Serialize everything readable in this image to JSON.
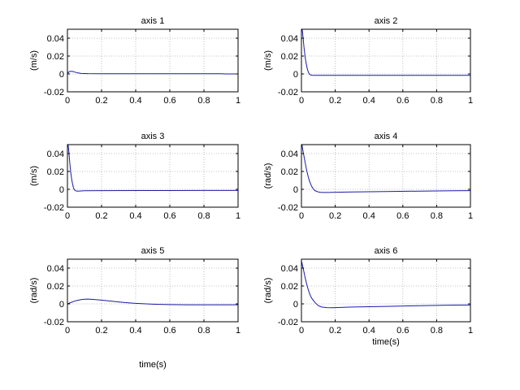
{
  "figure": {
    "background": "#ffffff",
    "line_color": "#1a1aa6",
    "grid_color": "#b0b0b0",
    "axis_color": "#000000"
  },
  "chart_data": [
    {
      "type": "line",
      "title": "axis 1",
      "xlabel": "",
      "ylabel": "(m/s)",
      "xlim": [
        0,
        1
      ],
      "ylim": [
        -0.02,
        0.05
      ],
      "xticks": [
        0,
        0.2,
        0.4,
        0.6,
        0.8,
        1
      ],
      "xtick_labels": [
        "0",
        "0.2",
        "0.4",
        "0.6",
        "0.8",
        "1"
      ],
      "yticks": [
        -0.02,
        0,
        0.02,
        0.04
      ],
      "ytick_labels": [
        "-0.02",
        "0",
        "0.02",
        "0.04"
      ],
      "grid": true,
      "series": [
        {
          "x": [
            0,
            0.01,
            0.02,
            0.03,
            0.04,
            0.06,
            0.08,
            0.12,
            0.2,
            0.4,
            0.6,
            0.8,
            0.9,
            0.93,
            1.0
          ],
          "y": [
            0.0005,
            0.0025,
            0.003,
            0.0028,
            0.0022,
            0.0012,
            0.0006,
            0.0003,
            0.0002,
            0.0002,
            0.0002,
            0.0002,
            0.0002,
            0.0,
            0.0
          ]
        }
      ]
    },
    {
      "type": "line",
      "title": "axis 2",
      "xlabel": "",
      "ylabel": "(m/s)",
      "xlim": [
        0,
        1
      ],
      "ylim": [
        -0.02,
        0.05
      ],
      "xticks": [
        0,
        0.2,
        0.4,
        0.6,
        0.8,
        1
      ],
      "xtick_labels": [
        "0",
        "0.2",
        "0.4",
        "0.6",
        "0.8",
        "1"
      ],
      "yticks": [
        -0.02,
        0,
        0.02,
        0.04
      ],
      "ytick_labels": [
        "-0.02",
        "0",
        "0.02",
        "0.04"
      ],
      "grid": true,
      "series": [
        {
          "x": [
            0.003,
            0.006,
            0.01,
            0.015,
            0.02,
            0.025,
            0.03,
            0.035,
            0.04,
            0.045,
            0.05,
            0.06,
            0.07,
            0.1,
            0.2,
            0.4,
            0.6,
            0.8,
            1.0
          ],
          "y": [
            0.05,
            0.048,
            0.04,
            0.03,
            0.022,
            0.015,
            0.01,
            0.0055,
            0.0025,
            0.0005,
            -0.0008,
            -0.0015,
            -0.0016,
            -0.0016,
            -0.0016,
            -0.0016,
            -0.0016,
            -0.0016,
            -0.0016
          ]
        }
      ]
    },
    {
      "type": "line",
      "title": "axis 3",
      "xlabel": "",
      "ylabel": "(m/s)",
      "xlim": [
        0,
        1
      ],
      "ylim": [
        -0.02,
        0.05
      ],
      "xticks": [
        0,
        0.2,
        0.4,
        0.6,
        0.8,
        1
      ],
      "xtick_labels": [
        "0",
        "0.2",
        "0.4",
        "0.6",
        "0.8",
        "1"
      ],
      "yticks": [
        -0.02,
        0,
        0.02,
        0.04
      ],
      "ytick_labels": [
        "-0.02",
        "0",
        "0.02",
        "0.04"
      ],
      "grid": true,
      "series": [
        {
          "x": [
            0.003,
            0.006,
            0.01,
            0.015,
            0.02,
            0.025,
            0.03,
            0.035,
            0.04,
            0.05,
            0.06,
            0.08,
            0.1,
            0.2,
            0.4,
            0.6,
            0.8,
            1.0
          ],
          "y": [
            0.05,
            0.047,
            0.038,
            0.027,
            0.018,
            0.011,
            0.006,
            0.002,
            -0.0005,
            -0.0018,
            -0.002,
            -0.0018,
            -0.0016,
            -0.0015,
            -0.0014,
            -0.0014,
            -0.0013,
            -0.0012
          ]
        }
      ]
    },
    {
      "type": "line",
      "title": "axis 4",
      "xlabel": "",
      "ylabel": "(rad/s)",
      "xlim": [
        0,
        1
      ],
      "ylim": [
        -0.02,
        0.05
      ],
      "xticks": [
        0,
        0.2,
        0.4,
        0.6,
        0.8,
        1
      ],
      "xtick_labels": [
        "0",
        "0.2",
        "0.4",
        "0.6",
        "0.8",
        "1"
      ],
      "yticks": [
        -0.02,
        0,
        0.02,
        0.04
      ],
      "ytick_labels": [
        "-0.02",
        "0",
        "0.02",
        "0.04"
      ],
      "grid": true,
      "series": [
        {
          "x": [
            0.003,
            0.01,
            0.02,
            0.03,
            0.04,
            0.05,
            0.06,
            0.07,
            0.08,
            0.1,
            0.12,
            0.15,
            0.2,
            0.3,
            0.5,
            0.7,
            0.9,
            1.0
          ],
          "y": [
            0.05,
            0.042,
            0.032,
            0.022,
            0.014,
            0.008,
            0.0035,
            0.0005,
            -0.0015,
            -0.003,
            -0.0035,
            -0.0035,
            -0.0033,
            -0.003,
            -0.0025,
            -0.002,
            -0.0016,
            -0.0015
          ]
        }
      ]
    },
    {
      "type": "line",
      "title": "axis 5",
      "xlabel": "",
      "ylabel": "(rad/s)",
      "xlim": [
        0,
        1
      ],
      "ylim": [
        -0.02,
        0.05
      ],
      "xticks": [
        0,
        0.2,
        0.4,
        0.6,
        0.8,
        1
      ],
      "xtick_labels": [
        "0",
        "0.2",
        "0.4",
        "0.6",
        "0.8",
        "1"
      ],
      "yticks": [
        -0.02,
        0,
        0.02,
        0.04
      ],
      "ytick_labels": [
        "-0.02",
        "0",
        "0.02",
        "0.04"
      ],
      "grid": true,
      "series": [
        {
          "x": [
            0,
            0.02,
            0.04,
            0.06,
            0.08,
            0.1,
            0.12,
            0.15,
            0.2,
            0.25,
            0.3,
            0.35,
            0.4,
            0.45,
            0.5,
            0.6,
            0.7,
            0.8,
            0.9,
            1.0
          ],
          "y": [
            0,
            0.0015,
            0.003,
            0.004,
            0.0048,
            0.0052,
            0.0053,
            0.005,
            0.0042,
            0.0032,
            0.0022,
            0.0013,
            0.0006,
            0.0001,
            -0.0003,
            -0.0008,
            -0.001,
            -0.001,
            -0.001,
            -0.001
          ]
        }
      ]
    },
    {
      "type": "line",
      "title": "axis 6",
      "xlabel": "time(s)",
      "ylabel": "(rad/s)",
      "xlim": [
        0,
        1
      ],
      "ylim": [
        -0.02,
        0.05
      ],
      "xticks": [
        0,
        0.2,
        0.4,
        0.6,
        0.8,
        1
      ],
      "xtick_labels": [
        "0",
        "0.2",
        "0.4",
        "0.6",
        "0.8",
        "1"
      ],
      "yticks": [
        -0.02,
        0,
        0.02,
        0.04
      ],
      "ytick_labels": [
        "-0.02",
        "0",
        "0.02",
        "0.04"
      ],
      "grid": true,
      "series": [
        {
          "x": [
            0,
            0.01,
            0.02,
            0.03,
            0.04,
            0.05,
            0.06,
            0.08,
            0.1,
            0.12,
            0.15,
            0.18,
            0.2,
            0.3,
            0.5,
            0.7,
            0.9,
            1.0
          ],
          "y": [
            0.048,
            0.04,
            0.031,
            0.023,
            0.016,
            0.0105,
            0.0065,
            0.0015,
            -0.002,
            -0.0035,
            -0.0042,
            -0.0043,
            -0.0042,
            -0.0035,
            -0.0028,
            -0.002,
            -0.0014,
            -0.0012
          ]
        }
      ]
    }
  ],
  "extra_xlabels": [
    "time(s)"
  ]
}
